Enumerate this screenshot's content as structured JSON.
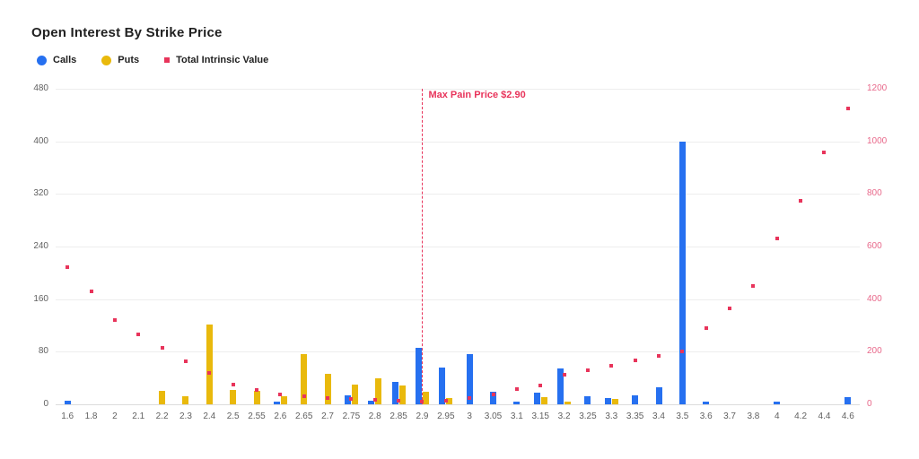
{
  "title": "Open Interest By Strike Price",
  "legend": [
    {
      "label": "Calls",
      "color": "#2670F0",
      "shape": "circle"
    },
    {
      "label": "Puts",
      "color": "#E9B90C",
      "shape": "circle"
    },
    {
      "label": "Total Intrinsic Value",
      "color": "#E8345B",
      "shape": "square"
    }
  ],
  "chart_data": {
    "type": "bar",
    "categories": [
      "1.6",
      "1.8",
      "2",
      "2.1",
      "2.2",
      "2.3",
      "2.4",
      "2.5",
      "2.55",
      "2.6",
      "2.65",
      "2.7",
      "2.75",
      "2.8",
      "2.85",
      "2.9",
      "2.95",
      "3",
      "3.05",
      "3.1",
      "3.15",
      "3.2",
      "3.25",
      "3.3",
      "3.35",
      "3.4",
      "3.5",
      "3.6",
      "3.7",
      "3.8",
      "4",
      "4.2",
      "4.4",
      "4.6"
    ],
    "series": [
      {
        "name": "Calls",
        "type": "bar",
        "axis": "left",
        "color": "#2670F0",
        "values": [
          6,
          0,
          0,
          0,
          0,
          0,
          0,
          0,
          0,
          4,
          0,
          0,
          13,
          6,
          34,
          86,
          56,
          77,
          19,
          4,
          18,
          55,
          12,
          10,
          13,
          26,
          400,
          4,
          0,
          0,
          4,
          0,
          0,
          11
        ]
      },
      {
        "name": "Puts",
        "type": "bar",
        "axis": "left",
        "color": "#E9B90C",
        "values": [
          0,
          0,
          0,
          0,
          20,
          12,
          121,
          22,
          21,
          12,
          76,
          46,
          30,
          40,
          29,
          19,
          10,
          0,
          0,
          0,
          11,
          4,
          0,
          8,
          0,
          0,
          0,
          0,
          0,
          0,
          0,
          0,
          0,
          0
        ]
      },
      {
        "name": "Total Intrinsic Value",
        "type": "scatter",
        "axis": "right",
        "color": "#E8345B",
        "values": [
          520,
          430,
          320,
          265,
          215,
          165,
          118,
          75,
          55,
          38,
          30,
          25,
          20,
          16,
          12,
          9,
          14,
          24,
          36,
          58,
          72,
          112,
          130,
          148,
          168,
          185,
          200,
          290,
          365,
          450,
          630,
          775,
          958,
          1125
        ]
      }
    ],
    "left_axis": {
      "min": 0,
      "max": 480,
      "ticks": [
        0,
        80,
        160,
        240,
        320,
        400,
        480
      ],
      "label_color": "#616161"
    },
    "right_axis": {
      "min": 0,
      "max": 1200,
      "ticks": [
        0,
        200,
        400,
        600,
        800,
        1000,
        1200
      ],
      "label_color": "#E8698B"
    },
    "grid": true,
    "legend_position": "top-left",
    "annotation": {
      "type": "vline",
      "category": "2.9",
      "label": "Max Pain Price $2.90",
      "color": "#E8345B"
    }
  }
}
